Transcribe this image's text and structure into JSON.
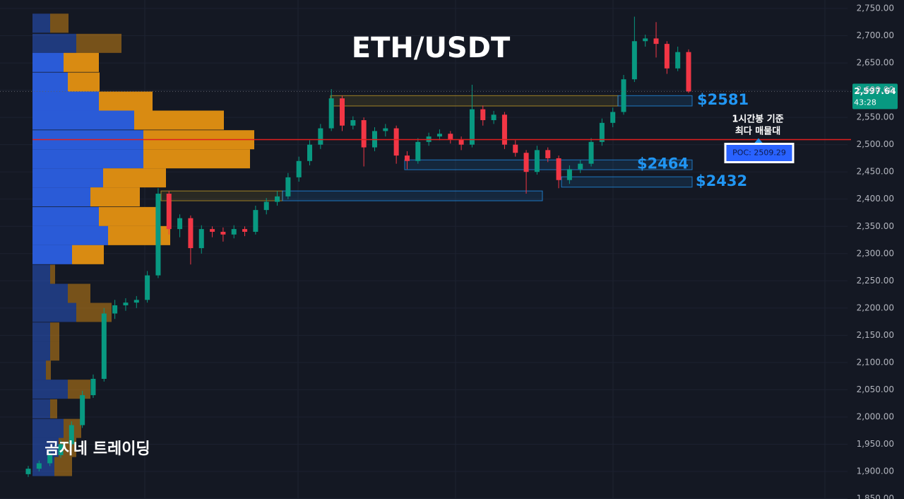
{
  "chart_data": {
    "type": "candlestick",
    "title": "ETH/USDT",
    "watermark": "곰지네 트레이딩",
    "ylim": [
      1849.4,
      2765.6
    ],
    "yticks": [
      {
        "value": 1850,
        "label": "1,850.00"
      },
      {
        "value": 1900,
        "label": "1,900.00"
      },
      {
        "value": 1950,
        "label": "1,950.00"
      },
      {
        "value": 2000,
        "label": "2,000.00"
      },
      {
        "value": 2050,
        "label": "2,050.00"
      },
      {
        "value": 2100,
        "label": "2,100.00"
      },
      {
        "value": 2150,
        "label": "2,150.00"
      },
      {
        "value": 2200,
        "label": "2,200.00"
      },
      {
        "value": 2250,
        "label": "2,250.00"
      },
      {
        "value": 2300,
        "label": "2,300.00"
      },
      {
        "value": 2350,
        "label": "2,350.00"
      },
      {
        "value": 2400,
        "label": "2,400.00"
      },
      {
        "value": 2450,
        "label": "2,450.00"
      },
      {
        "value": 2500,
        "label": "2,500.00"
      },
      {
        "value": 2550,
        "label": "2,550.00"
      },
      {
        "value": 2600,
        "label": "2,600.00"
      },
      {
        "value": 2650,
        "label": "2,650.00"
      },
      {
        "value": 2700,
        "label": "2,700.00"
      },
      {
        "value": 2750,
        "label": "2,750.00"
      }
    ],
    "up_color": "#089981",
    "down_color": "#f23645",
    "candles": {
      "open": [
        1895,
        1905,
        1915,
        1930,
        1950,
        1985,
        2040,
        2070,
        2190,
        2205,
        2210,
        2215,
        2260,
        2410,
        2345,
        2365,
        2310,
        2345,
        2340,
        2335,
        2345,
        2340,
        2380,
        2395,
        2405,
        2440,
        2470,
        2500,
        2530,
        2585,
        2535,
        2545,
        2495,
        2525,
        2530,
        2480,
        2470,
        2505,
        2515,
        2520,
        2510,
        2500,
        2565,
        2545,
        2555,
        2500,
        2485,
        2450,
        2490,
        2475,
        2435,
        2455,
        2465,
        2505,
        2540,
        2560,
        2620,
        2690,
        2695,
        2685,
        2640,
        2670
      ],
      "high": [
        1910,
        1920,
        1938,
        1958,
        1992,
        2048,
        2078,
        2200,
        2215,
        2218,
        2222,
        2268,
        2420,
        2415,
        2372,
        2370,
        2352,
        2350,
        2348,
        2352,
        2350,
        2388,
        2402,
        2415,
        2448,
        2478,
        2508,
        2538,
        2602,
        2590,
        2552,
        2550,
        2532,
        2538,
        2535,
        2488,
        2512,
        2522,
        2528,
        2525,
        2515,
        2610,
        2572,
        2562,
        2560,
        2508,
        2490,
        2498,
        2495,
        2480,
        2462,
        2472,
        2512,
        2548,
        2568,
        2628,
        2735,
        2702,
        2725,
        2690,
        2680,
        2675
      ],
      "low": [
        1890,
        1900,
        1910,
        1925,
        1945,
        1980,
        2035,
        2065,
        2180,
        2195,
        2200,
        2210,
        2255,
        2335,
        2330,
        2280,
        2300,
        2330,
        2322,
        2328,
        2332,
        2335,
        2372,
        2388,
        2400,
        2432,
        2462,
        2492,
        2525,
        2525,
        2528,
        2460,
        2488,
        2515,
        2465,
        2455,
        2465,
        2498,
        2508,
        2502,
        2490,
        2495,
        2535,
        2538,
        2492,
        2478,
        2410,
        2445,
        2468,
        2420,
        2428,
        2448,
        2460,
        2498,
        2532,
        2555,
        2615,
        2680,
        2660,
        2630,
        2635,
        2595
      ],
      "close": [
        1905,
        1915,
        1930,
        1950,
        1985,
        2040,
        2070,
        2190,
        2205,
        2210,
        2215,
        2260,
        2410,
        2345,
        2365,
        2310,
        2345,
        2340,
        2335,
        2345,
        2340,
        2380,
        2395,
        2405,
        2440,
        2470,
        2500,
        2530,
        2585,
        2535,
        2545,
        2495,
        2525,
        2530,
        2480,
        2470,
        2505,
        2515,
        2520,
        2510,
        2500,
        2565,
        2545,
        2555,
        2500,
        2485,
        2450,
        2490,
        2475,
        2435,
        2455,
        2465,
        2505,
        2540,
        2560,
        2620,
        2690,
        2695,
        2685,
        2640,
        2670,
        2597.64
      ]
    },
    "last_price": {
      "value": 2597.64,
      "label": "2,597.64"
    },
    "countdown": "43:28",
    "poc": {
      "value": 2509.29,
      "label": "POC: 2509.29",
      "color": "#e01e1e"
    },
    "poc_note": [
      "1시간봉 기준",
      "최다 매물대"
    ],
    "zones": [
      {
        "low": 2571,
        "high": 2590,
        "color": "#c9a227"
      },
      {
        "low": 2571,
        "high": 2590,
        "color": "#2196f3",
        "value": 2581,
        "label": "$2581"
      },
      {
        "low": 2454,
        "high": 2472,
        "color": "#2196f3",
        "value": 2464,
        "label": "$2464"
      },
      {
        "low": 2422,
        "high": 2441,
        "color": "#2196f3",
        "value": 2432,
        "label": "$2432"
      },
      {
        "low": 2397,
        "high": 2415,
        "color": "#c9a227"
      },
      {
        "low": 2397,
        "high": 2415,
        "color": "#2196f3"
      }
    ],
    "volume_profile": {
      "levels": [
        2723,
        2686,
        2651,
        2615,
        2580,
        2545,
        2509,
        2474,
        2439,
        2404,
        2368,
        2333,
        2298,
        2262,
        2227,
        2192,
        2156,
        2121,
        2086,
        2051,
        2015,
        1979,
        1944,
        1909
      ],
      "buy": [
        25,
        62,
        44,
        50,
        94,
        144,
        157,
        157,
        100,
        82,
        94,
        107,
        56,
        25,
        50,
        62,
        25,
        25,
        19,
        50,
        25,
        44,
        37,
        31
      ],
      "sell": [
        26,
        64,
        50,
        45,
        76,
        127,
        157,
        151,
        89,
        70,
        82,
        88,
        45,
        7,
        32,
        50,
        13,
        13,
        7,
        32,
        10,
        25,
        25,
        25
      ],
      "buy_color": "#2a5bd7",
      "sell_color": "#d98b12",
      "value_area": [
        2280,
        2668
      ]
    }
  }
}
